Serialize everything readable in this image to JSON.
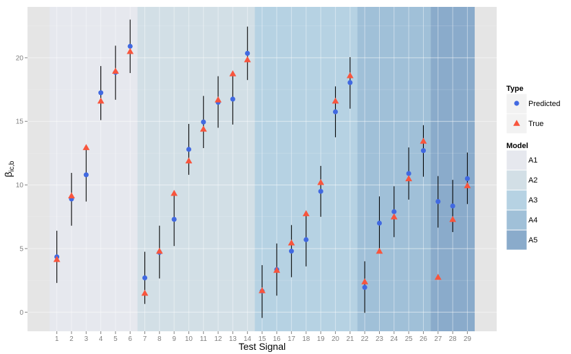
{
  "chart_data": {
    "type": "scatter",
    "title": "",
    "xlabel": "Test Signal",
    "ylabel_main": "β",
    "ylabel_sub": "ic,b",
    "ylim": [
      -1.5,
      24
    ],
    "yticks": [
      0,
      5,
      10,
      15,
      20
    ],
    "categories": [
      "1",
      "2",
      "3",
      "4",
      "5",
      "6",
      "7",
      "8",
      "9",
      "10",
      "11",
      "12",
      "13",
      "14",
      "15",
      "16",
      "17",
      "18",
      "19",
      "20",
      "21",
      "22",
      "23",
      "24",
      "25",
      "26",
      "27",
      "28",
      "29"
    ],
    "series": [
      {
        "name": "Predicted",
        "shape": "circle",
        "color": "#4169e1",
        "values": [
          4.35,
          8.9,
          10.8,
          17.25,
          18.85,
          20.9,
          2.7,
          4.7,
          7.3,
          12.8,
          14.95,
          16.5,
          16.75,
          20.35,
          1.65,
          3.35,
          4.8,
          5.7,
          9.5,
          15.75,
          18.05,
          1.95,
          7.0,
          7.9,
          10.9,
          12.7,
          8.7,
          8.35,
          10.5
        ],
        "lower": [
          2.3,
          6.8,
          8.7,
          15.1,
          16.7,
          18.8,
          0.65,
          2.65,
          5.2,
          10.8,
          12.9,
          14.5,
          14.75,
          18.25,
          -0.45,
          1.3,
          2.75,
          3.6,
          7.5,
          13.75,
          16.0,
          -0.05,
          4.9,
          5.9,
          8.85,
          10.65,
          6.65,
          6.3,
          8.5
        ],
        "upper": [
          6.4,
          10.95,
          12.85,
          19.35,
          20.95,
          23.0,
          4.75,
          6.8,
          9.35,
          14.8,
          17.0,
          18.55,
          18.8,
          22.45,
          3.7,
          5.4,
          6.85,
          7.75,
          11.5,
          17.75,
          20.05,
          4.0,
          9.1,
          9.9,
          12.95,
          14.7,
          10.7,
          10.4,
          12.55
        ]
      },
      {
        "name": "True",
        "shape": "triangle",
        "color": "#f8553d",
        "values": [
          4.15,
          9.15,
          12.95,
          16.6,
          18.95,
          20.5,
          1.5,
          4.8,
          9.35,
          11.9,
          14.4,
          16.7,
          18.75,
          19.85,
          1.7,
          3.3,
          5.45,
          7.75,
          10.2,
          16.6,
          18.6,
          2.4,
          4.8,
          7.5,
          10.5,
          13.45,
          2.75,
          7.3,
          9.95
        ]
      }
    ],
    "models": [
      {
        "name": "A1",
        "from": 1,
        "to": 6,
        "color": "#e6e8ee"
      },
      {
        "name": "A2",
        "from": 7,
        "to": 14,
        "color": "#d2dfe6"
      },
      {
        "name": "A3",
        "from": 15,
        "to": 21,
        "color": "#b6d2e3"
      },
      {
        "name": "A4",
        "from": 22,
        "to": 26,
        "color": "#a0c0d8"
      },
      {
        "name": "A5",
        "from": 27,
        "to": 29,
        "color": "#8aabcb"
      }
    ],
    "legend": {
      "type_title": "Type",
      "type_entries": [
        "Predicted",
        "True"
      ],
      "model_title": "Model",
      "model_entries": [
        "A1",
        "A2",
        "A3",
        "A4",
        "A5"
      ],
      "placement": "right"
    },
    "grid": true
  }
}
